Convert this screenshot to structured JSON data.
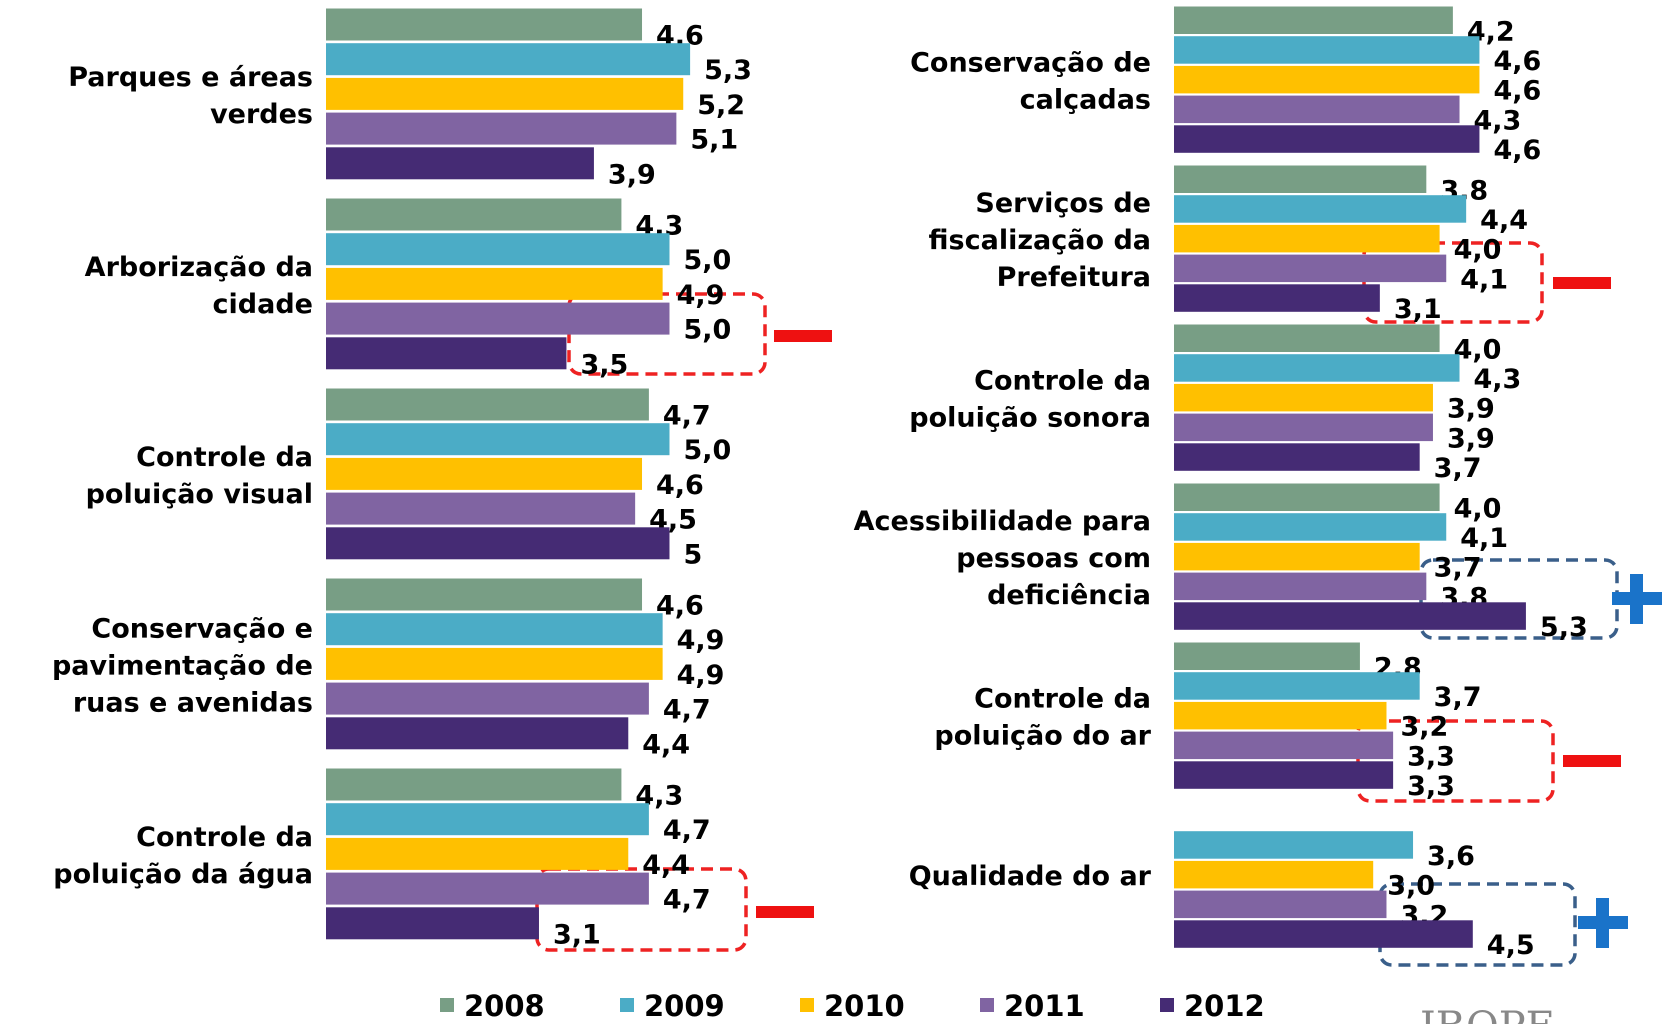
{
  "chart_data": {
    "type": "bar",
    "orientation": "horizontal",
    "categories": [
      "Parques e áreas\nverdes",
      "Arborização da\ncidade",
      "Controle da\npoluição visual",
      "Conservação e\npavimentação de\nruas e avenidas",
      "Controle da\npoluição da água",
      "Conservação de\ncalçadas",
      "Serviços de\nfiscalização da\nPrefeitura",
      "Controle da\npoluição sonora",
      "Acessibilidade para\npessoas com\ndeficiência",
      "Controle da\npoluição do ar",
      "Qualidade do ar"
    ],
    "series": [
      {
        "name": "2008",
        "color": "#789e85",
        "values": [
          4.6,
          4.3,
          4.7,
          4.6,
          4.3,
          4.2,
          3.8,
          4.0,
          4.0,
          2.8,
          null
        ],
        "value_labels": [
          "4,6",
          "4,3",
          "4,7",
          "4,6",
          "4,3",
          "4,2",
          "3,8",
          "4,0",
          "4,0",
          "2,8",
          null
        ]
      },
      {
        "name": "2009",
        "color": "#4bacc6",
        "values": [
          5.3,
          5.0,
          5.0,
          4.9,
          4.7,
          4.6,
          4.4,
          4.3,
          4.1,
          3.7,
          3.6
        ],
        "value_labels": [
          "5,3",
          "5,0",
          "5,0",
          "4,9",
          "4,7",
          "4,6",
          "4,4",
          "4,3",
          "4,1",
          "3,7",
          "3,6"
        ]
      },
      {
        "name": "2010",
        "color": "#ffc000",
        "values": [
          5.2,
          4.9,
          4.6,
          4.9,
          4.4,
          4.6,
          4.0,
          3.9,
          3.7,
          3.2,
          3.0
        ],
        "value_labels": [
          "5,2",
          "4,9",
          "4,6",
          "4,9",
          "4,4",
          "4,6",
          "4,0",
          "3,9",
          "3,7",
          "3,2",
          "3,0"
        ]
      },
      {
        "name": "2011",
        "color": "#8064a2",
        "values": [
          5.1,
          5.0,
          4.5,
          4.7,
          4.7,
          4.3,
          4.1,
          3.9,
          3.8,
          3.3,
          3.2
        ],
        "value_labels": [
          "5,1",
          "5,0",
          "4,5",
          "4,7",
          "4,7",
          "4,3",
          "4,1",
          "3,9",
          "3,8",
          "3,3",
          "3,2"
        ]
      },
      {
        "name": "2012",
        "color": "#452b74",
        "values": [
          3.9,
          3.5,
          5,
          4.4,
          3.1,
          4.6,
          3.1,
          3.7,
          5.3,
          3.3,
          4.5
        ],
        "value_labels": [
          "3,9",
          "3,5",
          "5",
          "4,4",
          "3,1",
          "4,6",
          "3,1",
          "3,7",
          "5,3",
          "3,3",
          "4,5"
        ]
      }
    ],
    "legend": "bottom",
    "footer_logo": "IBOPE"
  }
}
